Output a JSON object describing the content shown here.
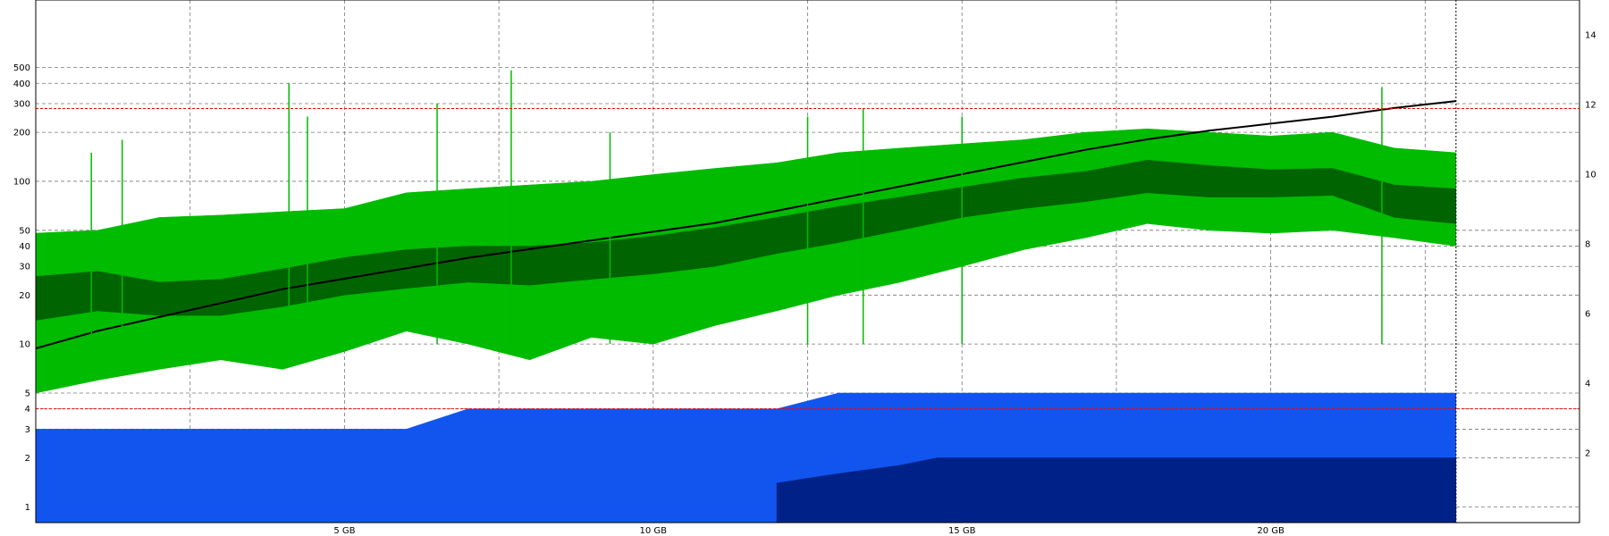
{
  "chart_data": {
    "type": "line",
    "title": "",
    "xlabel": "",
    "ylabel_left": "",
    "ylabel_right": "",
    "x_unit": "GB",
    "x_range": [
      0,
      25
    ],
    "x_ticks": [
      {
        "value": 5,
        "label": "5 GB"
      },
      {
        "value": 10,
        "label": "10 GB"
      },
      {
        "value": 15,
        "label": "15 GB"
      },
      {
        "value": 20,
        "label": "20 GB"
      }
    ],
    "y_left": {
      "scale": "log",
      "range": [
        0.8,
        1300
      ],
      "ticks": [
        {
          "value": 1,
          "label": "1"
        },
        {
          "value": 2,
          "label": "2"
        },
        {
          "value": 3,
          "label": "3"
        },
        {
          "value": 4,
          "label": "4"
        },
        {
          "value": 5,
          "label": "5"
        },
        {
          "value": 10,
          "label": "10"
        },
        {
          "value": 20,
          "label": "20"
        },
        {
          "value": 30,
          "label": "30"
        },
        {
          "value": 40,
          "label": "40"
        },
        {
          "value": 50,
          "label": "50"
        },
        {
          "value": 100,
          "label": "100"
        },
        {
          "value": 200,
          "label": "200"
        },
        {
          "value": 300,
          "label": "300"
        },
        {
          "value": 400,
          "label": "400"
        },
        {
          "value": 500,
          "label": "500"
        }
      ]
    },
    "y_right": {
      "scale": "linear",
      "range": [
        0,
        15
      ],
      "ticks": [
        {
          "value": 2,
          "label": "2"
        },
        {
          "value": 4,
          "label": "4"
        },
        {
          "value": 6,
          "label": "6"
        },
        {
          "value": 8,
          "label": "8"
        },
        {
          "value": 10,
          "label": "10"
        },
        {
          "value": 12,
          "label": "12"
        },
        {
          "value": 14,
          "label": "14"
        }
      ]
    },
    "reference_lines": [
      {
        "axis": "left",
        "value": 280,
        "color": "#ff0000"
      },
      {
        "axis": "left",
        "value": 4,
        "color": "#ff0000"
      }
    ],
    "x_end": 23,
    "grid": true,
    "legend": "none",
    "series": [
      {
        "axis": "left",
        "style": "band",
        "color": "#00bb00",
        "x": [
          0,
          1,
          2,
          3,
          4,
          5,
          6,
          7,
          8,
          9,
          10,
          11,
          12,
          13,
          14,
          15,
          16,
          17,
          18,
          19,
          20,
          21,
          22,
          23
        ],
        "low": [
          5,
          6,
          7,
          8,
          7,
          9,
          12,
          10,
          8,
          11,
          10,
          13,
          16,
          20,
          24,
          30,
          38,
          45,
          55,
          50,
          48,
          50,
          45,
          40
        ],
        "high": [
          48,
          50,
          60,
          62,
          65,
          68,
          85,
          90,
          95,
          100,
          110,
          120,
          130,
          150,
          160,
          170,
          180,
          200,
          210,
          200,
          190,
          200,
          160,
          150
        ]
      },
      {
        "axis": "left",
        "style": "band",
        "color": "#006400",
        "x": [
          0,
          1,
          2,
          3,
          4,
          5,
          6,
          7,
          8,
          9,
          10,
          11,
          12,
          13,
          14,
          15,
          16,
          17,
          18,
          19,
          20,
          21,
          22,
          23
        ],
        "low": [
          14,
          16,
          15,
          15,
          17,
          20,
          22,
          24,
          23,
          25,
          27,
          30,
          36,
          42,
          50,
          60,
          68,
          75,
          85,
          80,
          80,
          82,
          60,
          55
        ],
        "high": [
          26,
          28,
          24,
          25,
          29,
          34,
          38,
          40,
          40,
          42,
          46,
          52,
          60,
          70,
          80,
          92,
          105,
          115,
          135,
          125,
          118,
          120,
          95,
          90
        ]
      },
      {
        "axis": "left",
        "style": "band",
        "color": "#1155ee",
        "x": [
          0,
          1,
          2,
          3,
          4,
          5,
          6,
          7,
          8,
          9,
          10,
          11,
          12,
          13,
          14,
          15,
          16,
          17,
          18,
          19,
          20,
          21,
          22,
          23
        ],
        "low": [
          0.8,
          0.8,
          0.8,
          0.8,
          0.8,
          0.8,
          0.8,
          0.8,
          0.8,
          0.8,
          0.8,
          0.8,
          0.8,
          0.8,
          0.8,
          0.8,
          0.8,
          0.8,
          0.8,
          0.8,
          0.8,
          0.8,
          0.8,
          0.8
        ],
        "high": [
          3,
          3,
          3,
          3,
          3,
          3,
          3,
          4,
          4,
          4,
          4,
          4,
          4,
          5,
          5,
          5,
          5,
          5,
          5,
          5,
          5,
          5,
          5,
          5
        ]
      },
      {
        "axis": "left",
        "style": "band",
        "color": "#002288",
        "x": [
          12,
          13,
          14,
          14.6,
          15,
          16,
          17,
          18,
          19,
          20,
          21,
          22,
          23
        ],
        "low": [
          0.8,
          0.8,
          0.8,
          0.8,
          0.8,
          0.8,
          0.8,
          0.8,
          0.8,
          0.8,
          0.8,
          0.8,
          0.8
        ],
        "high": [
          1.4,
          1.6,
          1.8,
          2,
          2,
          2,
          2,
          2,
          2,
          2,
          2,
          2,
          2
        ]
      },
      {
        "axis": "right",
        "style": "line",
        "color": "#000000",
        "x": [
          0,
          1,
          2,
          3,
          4,
          5,
          6,
          7,
          8,
          9,
          10,
          11,
          12,
          13,
          14,
          15,
          16,
          17,
          18,
          19,
          20,
          21,
          22,
          23
        ],
        "y": [
          5,
          5.5,
          5.9,
          6.3,
          6.7,
          7.0,
          7.3,
          7.6,
          7.85,
          8.1,
          8.35,
          8.6,
          8.95,
          9.3,
          9.65,
          10.0,
          10.35,
          10.7,
          11.0,
          11.25,
          11.45,
          11.65,
          11.9,
          12.1
        ]
      }
    ],
    "spikes": [
      {
        "x": 0.9,
        "value": 150
      },
      {
        "x": 1.4,
        "value": 180
      },
      {
        "x": 4.1,
        "value": 400
      },
      {
        "x": 4.4,
        "value": 250
      },
      {
        "x": 6.5,
        "value": 300
      },
      {
        "x": 7.7,
        "value": 480
      },
      {
        "x": 9.3,
        "value": 200
      },
      {
        "x": 12.5,
        "value": 250
      },
      {
        "x": 13.4,
        "value": 280
      },
      {
        "x": 15.0,
        "value": 250
      },
      {
        "x": 21.8,
        "value": 380
      }
    ]
  }
}
